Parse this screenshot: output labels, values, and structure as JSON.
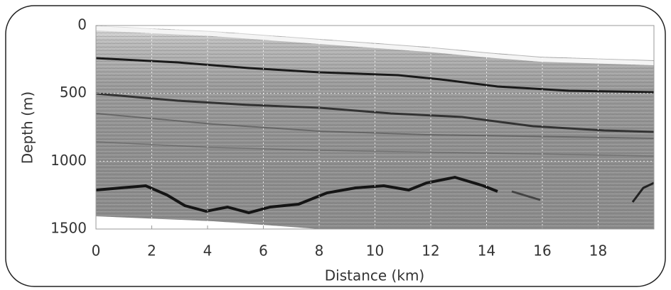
{
  "chart_data": {
    "type": "radargram",
    "x_label": "Distance (km)",
    "y_label": "Depth (m)",
    "xlim": [
      0,
      20
    ],
    "xticks": [
      0,
      2,
      4,
      6,
      8,
      10,
      12,
      14,
      16,
      18
    ],
    "ylim": [
      0,
      1500
    ],
    "yticks": [
      0,
      500,
      1000,
      1500
    ],
    "y_inverted": true,
    "grid": true
  }
}
